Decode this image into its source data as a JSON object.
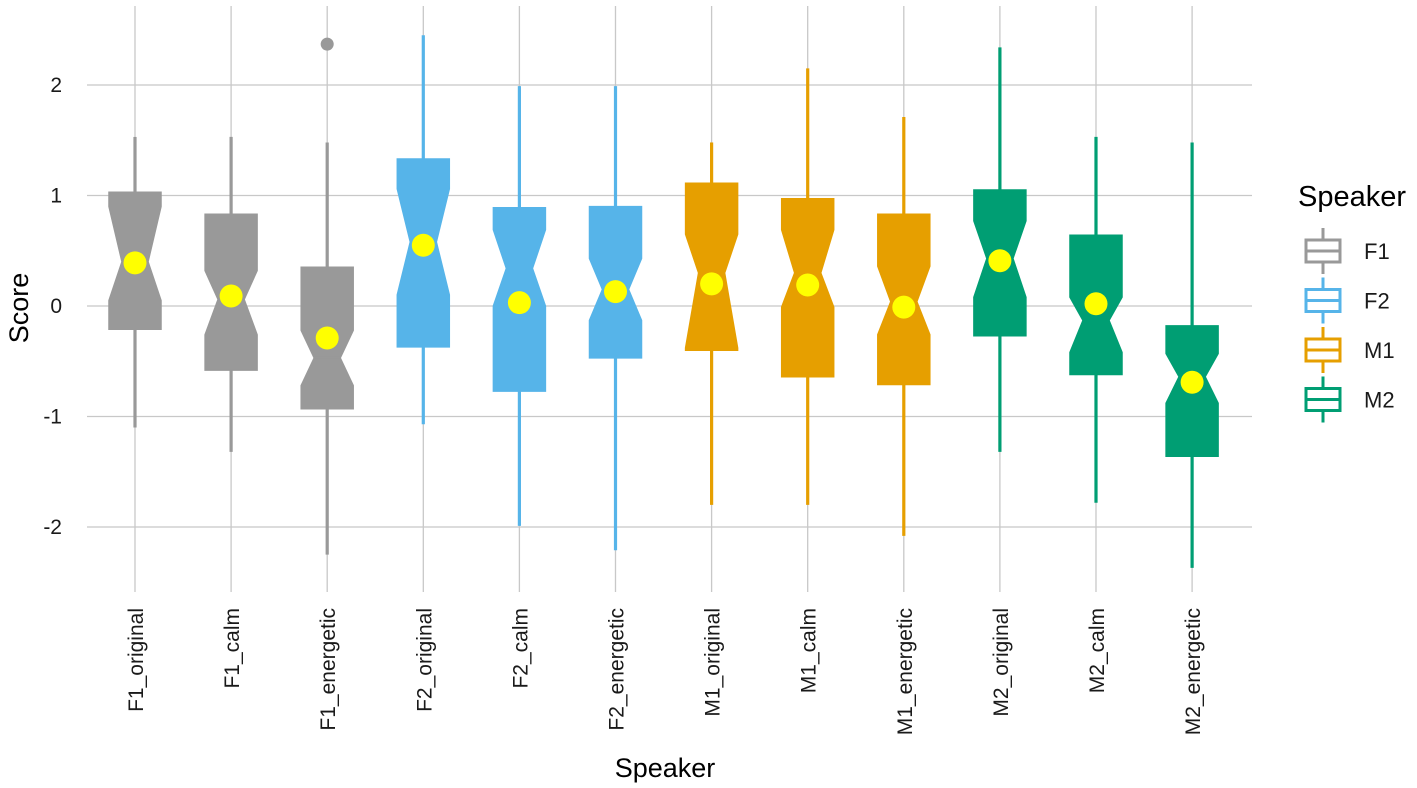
{
  "chart_data": {
    "type": "box",
    "xlabel": "Speaker",
    "ylabel": "Score",
    "ylim": [
      -2.6,
      2.75
    ],
    "yticks": [
      -2,
      -1,
      0,
      1,
      2
    ],
    "ytick_labels": [
      "-2",
      "-1",
      "0",
      "1",
      "2"
    ],
    "grid": true,
    "notched": true,
    "legend": {
      "title": "Speaker",
      "placement": "right",
      "entries": [
        {
          "label": "F1",
          "color": "#999999"
        },
        {
          "label": "F2",
          "color": "#56B4E9"
        },
        {
          "label": "M1",
          "color": "#E69F00"
        },
        {
          "label": "M2",
          "color": "#009E73"
        }
      ]
    },
    "mean_marker_color": "#FFFF00",
    "categories": [
      "F1_original",
      "F1_calm",
      "F1_energetic",
      "F2_original",
      "F2_calm",
      "F2_energetic",
      "M1_original",
      "M1_calm",
      "M1_energetic",
      "M2_original",
      "M2_calm",
      "M2_energetic"
    ],
    "boxes": [
      {
        "category": "F1_original",
        "group": "F1",
        "whisker_low": -1.1,
        "q1": -0.21,
        "median": 0.4,
        "q3": 1.03,
        "whisker_high": 1.53,
        "notch_low": 0.05,
        "notch_high": 0.9,
        "mean": 0.39,
        "outliers": []
      },
      {
        "category": "F1_calm",
        "group": "F1",
        "whisker_low": -1.32,
        "q1": -0.58,
        "median": 0.06,
        "q3": 0.83,
        "whisker_high": 1.53,
        "notch_low": -0.26,
        "notch_high": 0.32,
        "mean": 0.09,
        "outliers": []
      },
      {
        "category": "F1_energetic",
        "group": "F1",
        "whisker_low": -2.25,
        "q1": -0.93,
        "median": -0.47,
        "q3": 0.35,
        "whisker_high": 1.48,
        "notch_low": -0.72,
        "notch_high": -0.22,
        "mean": -0.29,
        "outliers": [
          2.37
        ]
      },
      {
        "category": "F2_original",
        "group": "F2",
        "whisker_low": -1.07,
        "q1": -0.37,
        "median": 0.58,
        "q3": 1.33,
        "whisker_high": 2.45,
        "notch_low": 0.1,
        "notch_high": 1.06,
        "mean": 0.55,
        "outliers": []
      },
      {
        "category": "F2_calm",
        "group": "F2",
        "whisker_low": -1.99,
        "q1": -0.77,
        "median": 0.34,
        "q3": 0.89,
        "whisker_high": 1.99,
        "notch_low": 0.0,
        "notch_high": 0.69,
        "mean": 0.03,
        "outliers": []
      },
      {
        "category": "F2_energetic",
        "group": "F2",
        "whisker_low": -2.21,
        "q1": -0.47,
        "median": 0.15,
        "q3": 0.9,
        "whisker_high": 1.99,
        "notch_low": -0.13,
        "notch_high": 0.43,
        "mean": 0.13,
        "outliers": []
      },
      {
        "category": "M1_original",
        "group": "M1",
        "whisker_low": -1.8,
        "q1": -0.4,
        "median": 0.3,
        "q3": 1.11,
        "whisker_high": 1.48,
        "notch_low": -0.38,
        "notch_high": 0.65,
        "mean": 0.2,
        "outliers": []
      },
      {
        "category": "M1_calm",
        "group": "M1",
        "whisker_low": -1.8,
        "q1": -0.64,
        "median": 0.3,
        "q3": 0.97,
        "whisker_high": 2.15,
        "notch_low": -0.01,
        "notch_high": 0.69,
        "mean": 0.19,
        "outliers": []
      },
      {
        "category": "M1_energetic",
        "group": "M1",
        "whisker_low": -2.08,
        "q1": -0.71,
        "median": 0.04,
        "q3": 0.83,
        "whisker_high": 1.71,
        "notch_low": -0.26,
        "notch_high": 0.36,
        "mean": -0.01,
        "outliers": []
      },
      {
        "category": "M2_original",
        "group": "M2",
        "whisker_low": -1.32,
        "q1": -0.27,
        "median": 0.43,
        "q3": 1.05,
        "whisker_high": 2.34,
        "notch_low": 0.08,
        "notch_high": 0.77,
        "mean": 0.41,
        "outliers": []
      },
      {
        "category": "M2_calm",
        "group": "M2",
        "whisker_low": -1.78,
        "q1": -0.62,
        "median": -0.13,
        "q3": 0.64,
        "whisker_high": 1.53,
        "notch_low": -0.42,
        "notch_high": 0.08,
        "mean": 0.02,
        "outliers": []
      },
      {
        "category": "M2_energetic",
        "group": "M2",
        "whisker_low": -2.37,
        "q1": -1.36,
        "median": -0.64,
        "q3": -0.18,
        "whisker_high": 1.48,
        "notch_low": -0.88,
        "notch_high": -0.43,
        "mean": -0.69,
        "outliers": []
      }
    ]
  }
}
